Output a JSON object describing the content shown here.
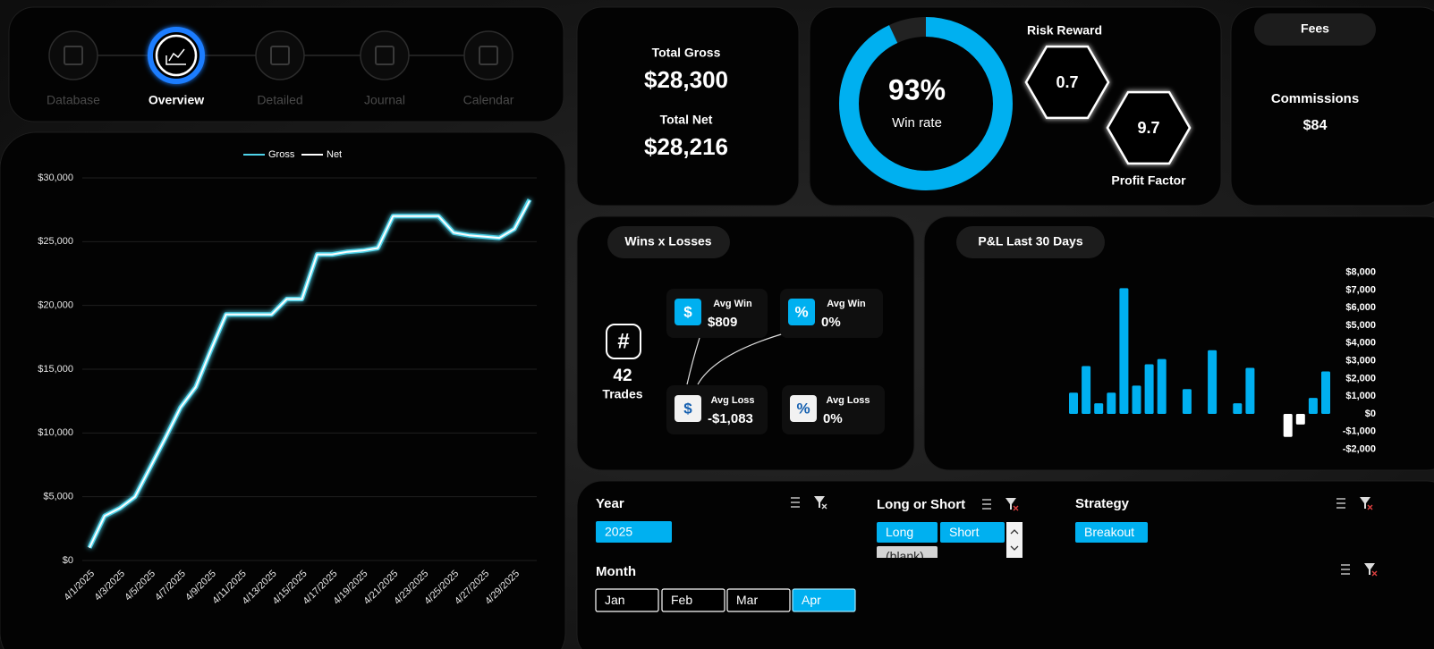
{
  "nav": [
    {
      "label": "Database",
      "active": false
    },
    {
      "label": "Overview",
      "active": true
    },
    {
      "label": "Detailed",
      "active": false
    },
    {
      "label": "Journal",
      "active": false
    },
    {
      "label": "Calendar",
      "active": false
    }
  ],
  "totals": {
    "gross_label": "Total Gross",
    "gross": "$28,300",
    "net_label": "Total Net",
    "net": "$28,216"
  },
  "win_rate": {
    "value": 93,
    "label": "93%",
    "caption": "Win rate",
    "color": "#00b0f0"
  },
  "risk_reward": {
    "label": "Risk Reward",
    "value": 0.7
  },
  "profit_factor": {
    "label": "Profit Factor",
    "value": 9.7
  },
  "fees": {
    "title": "Fees",
    "label": "Commissions",
    "value": "$84"
  },
  "wins_losses": {
    "title": "Wins x Losses",
    "trades_icon": "#",
    "trades": 42,
    "trades_label": "Trades",
    "cards": [
      {
        "icon": "$",
        "label": "Avg Win",
        "value": "$809"
      },
      {
        "icon": "%",
        "label": "Avg Win",
        "value": "0%"
      },
      {
        "icon": "$",
        "label": "Avg Loss",
        "value": "-$1,083"
      },
      {
        "icon": "%",
        "label": "Avg Loss",
        "value": "0%"
      }
    ]
  },
  "chart_data": [
    {
      "type": "line",
      "categories": [
        "4/1/2025",
        null,
        "4/3/2025",
        null,
        "4/5/2025",
        null,
        "4/7/2025",
        null,
        "4/9/2025",
        null,
        "4/11/2025",
        null,
        "4/13/2025",
        null,
        "4/15/2025",
        null,
        "4/17/2025",
        null,
        "4/19/2025",
        null,
        "4/21/2025",
        null,
        "4/23/2025",
        null,
        "4/25/2025",
        null,
        "4/27/2025",
        null,
        "4/29/2025",
        null
      ],
      "series": [
        {
          "name": "Gross",
          "color": "#4fd3ea",
          "values": [
            1000,
            3500,
            4100,
            5000,
            7300,
            9600,
            12000,
            13600,
            16500,
            19300,
            19300,
            19300,
            19300,
            20500,
            20500,
            24000,
            24000,
            24200,
            24300,
            24500,
            27000,
            27000,
            27000,
            27000,
            25700,
            25500,
            25400,
            25300,
            26000,
            28300
          ]
        },
        {
          "name": "Net",
          "color": "#ffffff",
          "values": [
            1000,
            3500,
            4100,
            5000,
            7300,
            9600,
            12000,
            13600,
            16500,
            19300,
            19300,
            19300,
            19300,
            20500,
            20500,
            24000,
            24000,
            24200,
            24300,
            24500,
            27000,
            27000,
            27000,
            27000,
            25700,
            25500,
            25400,
            25300,
            26000,
            28216
          ]
        }
      ],
      "ylim": [
        0,
        30000
      ],
      "yticks": [
        {
          "value": 0,
          "label": "$0"
        },
        {
          "value": 5000,
          "label": "$5,000"
        },
        {
          "value": 10000,
          "label": "$10,000"
        },
        {
          "value": 15000,
          "label": "$15,000"
        },
        {
          "value": 20000,
          "label": "$20,000"
        },
        {
          "value": 25000,
          "label": "$25,000"
        },
        {
          "value": 30000,
          "label": "$30,000"
        }
      ],
      "grid": true,
      "legend": "top"
    },
    {
      "type": "bar",
      "title": "P&L Last 30 Days",
      "categories": [
        null,
        null,
        null,
        null,
        null,
        null,
        null,
        null,
        null,
        null,
        null,
        null,
        null,
        null,
        null,
        null,
        null,
        null,
        null,
        null,
        null
      ],
      "values": [
        1200,
        2700,
        600,
        1200,
        7100,
        1600,
        2800,
        3100,
        null,
        1400,
        null,
        3600,
        null,
        600,
        2600,
        null,
        null,
        -1300,
        -600,
        900,
        2400
      ],
      "color": "#00b0f0",
      "negative_color": "#ffffff",
      "ylim": [
        -2000,
        8000
      ],
      "yticks": [
        {
          "value": -2000,
          "label": "-$2,000"
        },
        {
          "value": -1000,
          "label": "-$1,000"
        },
        {
          "value": 0,
          "label": "$0"
        },
        {
          "value": 1000,
          "label": "$1,000"
        },
        {
          "value": 2000,
          "label": "$2,000"
        },
        {
          "value": 3000,
          "label": "$3,000"
        },
        {
          "value": 4000,
          "label": "$4,000"
        },
        {
          "value": 5000,
          "label": "$5,000"
        },
        {
          "value": 6000,
          "label": "$6,000"
        },
        {
          "value": 7000,
          "label": "$7,000"
        },
        {
          "value": 8000,
          "label": "$8,000"
        }
      ],
      "grid": false,
      "y_axis": "right"
    }
  ],
  "slicers": [
    {
      "title": "Year",
      "items": [
        {
          "label": "2025",
          "selected": true
        }
      ]
    },
    {
      "title": "Long or Short",
      "items": [
        {
          "label": "Long",
          "selected": true
        },
        {
          "label": "Short",
          "selected": true
        },
        {
          "label": "(blank)",
          "selected": false
        }
      ]
    },
    {
      "title": "Strategy",
      "items": [
        {
          "label": "Breakout",
          "selected": true
        }
      ]
    },
    {
      "title": "Month",
      "items": [
        {
          "label": "Jan",
          "selected": false
        },
        {
          "label": "Feb",
          "selected": false
        },
        {
          "label": "Mar",
          "selected": false
        },
        {
          "label": "Apr",
          "selected": true
        }
      ]
    }
  ]
}
